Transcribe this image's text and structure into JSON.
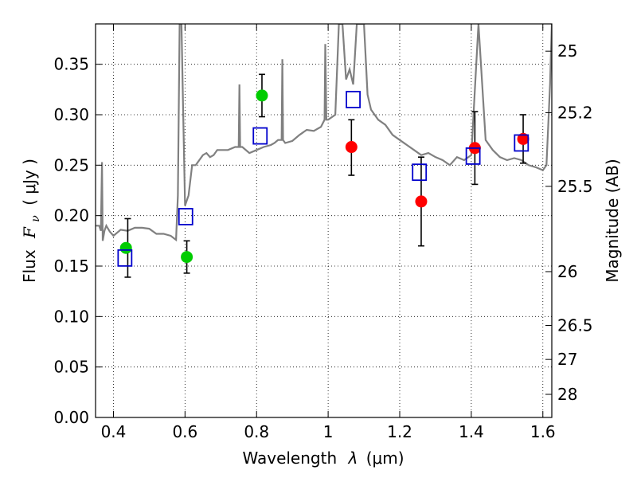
{
  "chart_data": {
    "type": "scatter",
    "title": "",
    "xlabel_prefix": "Wavelength",
    "xlabel_symbol": "λ",
    "xlabel_unit": "(μm)",
    "ylabel_prefix": "Flux",
    "ylabel_symbol": "F",
    "ylabel_symbol_sub": "ν",
    "ylabel_unit": "( μJy )",
    "y2label": "Magnitude (AB)",
    "xlim": [
      0.35,
      1.625
    ],
    "ylim": [
      0.0,
      0.39
    ],
    "grid": true,
    "x_ticks": [
      0.4,
      0.6,
      0.8,
      1.0,
      1.2,
      1.4,
      1.6
    ],
    "x_tick_labels": [
      "0.4",
      "0.6",
      "0.8",
      "1",
      "1.2",
      "1.4",
      "1.6"
    ],
    "y_ticks": [
      0.0,
      0.05,
      0.1,
      0.15,
      0.2,
      0.25,
      0.3,
      0.35
    ],
    "y_tick_labels": [
      "0.00",
      "0.05",
      "0.10",
      "0.15",
      "0.20",
      "0.25",
      "0.30",
      "0.35"
    ],
    "y2_ticks": [
      {
        "label": "25",
        "flux": 0.363
      },
      {
        "label": "25.2",
        "flux": 0.302
      },
      {
        "label": "25.5",
        "flux": 0.229
      },
      {
        "label": "26",
        "flux": 0.1445
      },
      {
        "label": "26.5",
        "flux": 0.0912
      },
      {
        "label": "27",
        "flux": 0.0575
      },
      {
        "label": "28",
        "flux": 0.0229
      }
    ],
    "model_spectrum": {
      "color": "#808080",
      "x": [
        0.35,
        0.36,
        0.365,
        0.368,
        0.37,
        0.375,
        0.38,
        0.39,
        0.4,
        0.42,
        0.44,
        0.46,
        0.48,
        0.5,
        0.52,
        0.54,
        0.56,
        0.575,
        0.58,
        0.585,
        0.59,
        0.595,
        0.6,
        0.61,
        0.62,
        0.63,
        0.64,
        0.65,
        0.66,
        0.67,
        0.68,
        0.69,
        0.7,
        0.72,
        0.74,
        0.75,
        0.752,
        0.754,
        0.76,
        0.78,
        0.8,
        0.82,
        0.84,
        0.85,
        0.86,
        0.87,
        0.872,
        0.874,
        0.88,
        0.9,
        0.92,
        0.94,
        0.96,
        0.98,
        0.99,
        0.992,
        0.995,
        1.0,
        1.02,
        1.03,
        1.04,
        1.05,
        1.06,
        1.07,
        1.08,
        1.09,
        1.1,
        1.11,
        1.12,
        1.13,
        1.14,
        1.16,
        1.18,
        1.2,
        1.22,
        1.24,
        1.26,
        1.28,
        1.3,
        1.32,
        1.34,
        1.36,
        1.38,
        1.4,
        1.42,
        1.44,
        1.46,
        1.48,
        1.5,
        1.52,
        1.54,
        1.56,
        1.58,
        1.6,
        1.61,
        1.62,
        1.625
      ],
      "y": [
        0.19,
        0.19,
        0.185,
        0.253,
        0.175,
        0.185,
        0.19,
        0.184,
        0.18,
        0.186,
        0.185,
        0.188,
        0.188,
        0.187,
        0.182,
        0.182,
        0.18,
        0.176,
        0.22,
        0.39,
        0.39,
        0.3,
        0.21,
        0.22,
        0.25,
        0.25,
        0.255,
        0.26,
        0.262,
        0.258,
        0.26,
        0.265,
        0.265,
        0.265,
        0.268,
        0.268,
        0.33,
        0.268,
        0.268,
        0.262,
        0.265,
        0.268,
        0.27,
        0.272,
        0.275,
        0.275,
        0.355,
        0.275,
        0.272,
        0.274,
        0.28,
        0.285,
        0.284,
        0.288,
        0.295,
        0.37,
        0.295,
        0.295,
        0.3,
        0.39,
        0.39,
        0.335,
        0.345,
        0.33,
        0.39,
        0.39,
        0.39,
        0.32,
        0.305,
        0.3,
        0.295,
        0.29,
        0.28,
        0.275,
        0.27,
        0.265,
        0.26,
        0.262,
        0.258,
        0.255,
        0.25,
        0.258,
        0.255,
        0.26,
        0.39,
        0.275,
        0.265,
        0.258,
        0.255,
        0.257,
        0.255,
        0.25,
        0.248,
        0.245,
        0.25,
        0.33,
        0.39
      ]
    },
    "series": [
      {
        "marker": "circle",
        "color": "#00cc00",
        "points": [
          {
            "x": 0.435,
            "y": 0.168
          },
          {
            "x": 0.605,
            "y": 0.159
          },
          {
            "x": 0.815,
            "y": 0.319
          }
        ]
      },
      {
        "marker": "circle",
        "color": "#ff0000",
        "points": [
          {
            "x": 1.065,
            "y": 0.268
          },
          {
            "x": 1.26,
            "y": 0.214
          },
          {
            "x": 1.41,
            "y": 0.267
          },
          {
            "x": 1.545,
            "y": 0.276
          }
        ]
      },
      {
        "marker": "open-square",
        "color": "#0000cc",
        "points": [
          {
            "x": 0.432,
            "y": 0.158
          },
          {
            "x": 0.602,
            "y": 0.199
          },
          {
            "x": 0.81,
            "y": 0.279
          },
          {
            "x": 1.07,
            "y": 0.315
          },
          {
            "x": 1.255,
            "y": 0.243
          },
          {
            "x": 1.405,
            "y": 0.259
          },
          {
            "x": 1.54,
            "y": 0.272
          }
        ]
      }
    ],
    "error_bars": [
      {
        "x": 0.44,
        "low": 0.139,
        "high": 0.197
      },
      {
        "x": 0.605,
        "low": 0.143,
        "high": 0.175
      },
      {
        "x": 0.815,
        "low": 0.298,
        "high": 0.34
      },
      {
        "x": 1.065,
        "low": 0.24,
        "high": 0.295
      },
      {
        "x": 1.26,
        "low": 0.17,
        "high": 0.258
      },
      {
        "x": 1.41,
        "low": 0.231,
        "high": 0.303
      },
      {
        "x": 1.545,
        "low": 0.252,
        "high": 0.3
      }
    ]
  }
}
